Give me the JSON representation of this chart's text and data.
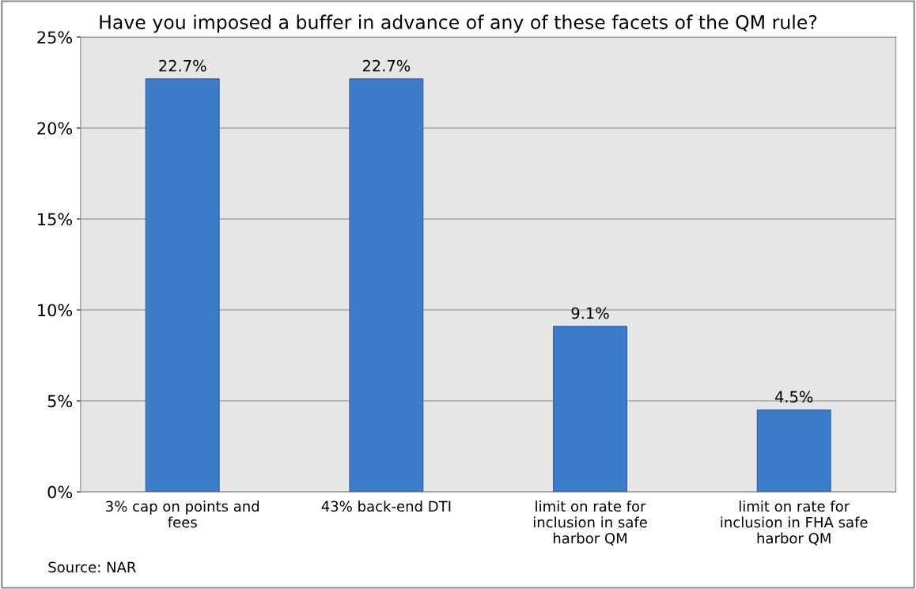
{
  "chart_data": {
    "type": "bar",
    "title": "Have you imposed a buffer in advance of any of these facets of the QM rule?",
    "categories": [
      "3% cap on points and\nfees",
      "43% back-end DTI",
      "limit on rate for\ninclusion in safe\nharbor QM",
      "limit on rate for\ninclusion in FHA safe\nharbor QM"
    ],
    "values": [
      22.7,
      22.7,
      9.1,
      4.5
    ],
    "value_labels": [
      "22.7%",
      "22.7%",
      "9.1%",
      "4.5%"
    ],
    "color": "#3d7cc9",
    "ylim": [
      0,
      25
    ],
    "yticks": [
      {
        "value": 0,
        "label": "0%"
      },
      {
        "value": 5,
        "label": "5%"
      },
      {
        "value": 10,
        "label": "10%"
      },
      {
        "value": 15,
        "label": "15%"
      },
      {
        "value": 20,
        "label": "20%"
      },
      {
        "value": 25,
        "label": "25%"
      }
    ],
    "grid": "y",
    "annotations": [
      "Source: NAR"
    ]
  }
}
